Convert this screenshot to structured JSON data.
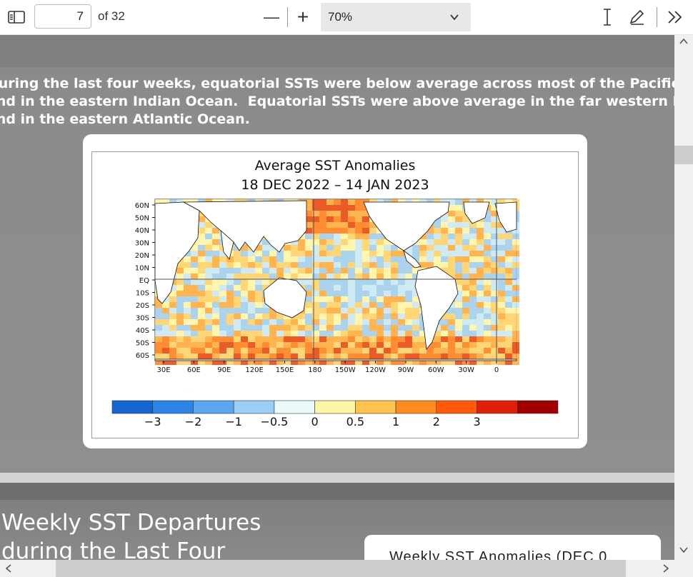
{
  "toolbar": {
    "page_number": "7",
    "page_count_label": "of 32",
    "zoom_minus": "—",
    "zoom_plus": "+",
    "zoom_value": "70%"
  },
  "page1": {
    "paragraph": "During the last four weeks, equatorial SSTs were below average across most of the Pacific Ocean\nand in the eastern Indian Ocean.  Equatorial SSTs were above average in the far western Pacific\nand in the eastern Atlantic Ocean."
  },
  "figure": {
    "title": "Average  SST  Anomalies",
    "subtitle": "18  DEC  2022  –  14  JAN  2023",
    "lat_labels": [
      "60N",
      "50N",
      "40N",
      "30N",
      "20N",
      "10N",
      "EQ",
      "10S",
      "20S",
      "30S",
      "40S",
      "50S",
      "60S"
    ],
    "lon_labels": [
      "30E",
      "60E",
      "90E",
      "120E",
      "150E",
      "180",
      "150W",
      "120W",
      "90W",
      "60W",
      "30W",
      "0"
    ],
    "colorbar_colors": [
      "#1565d0",
      "#2d82e6",
      "#5aa6f0",
      "#9ccdf5",
      "#e8fafa",
      "#fff5a8",
      "#ffc24a",
      "#ff8a1e",
      "#ff5a0a",
      "#e01e0a",
      "#a00000"
    ],
    "colorbar_labels": [
      "−3",
      "−2",
      "−1",
      "−0.5",
      "0",
      "0.5",
      "1",
      "2",
      "3"
    ]
  },
  "page2": {
    "title": "Weekly SST Departures\nduring the Last Four",
    "card_text": "Weekly  SST  Anomalies  (DEC  0"
  }
}
